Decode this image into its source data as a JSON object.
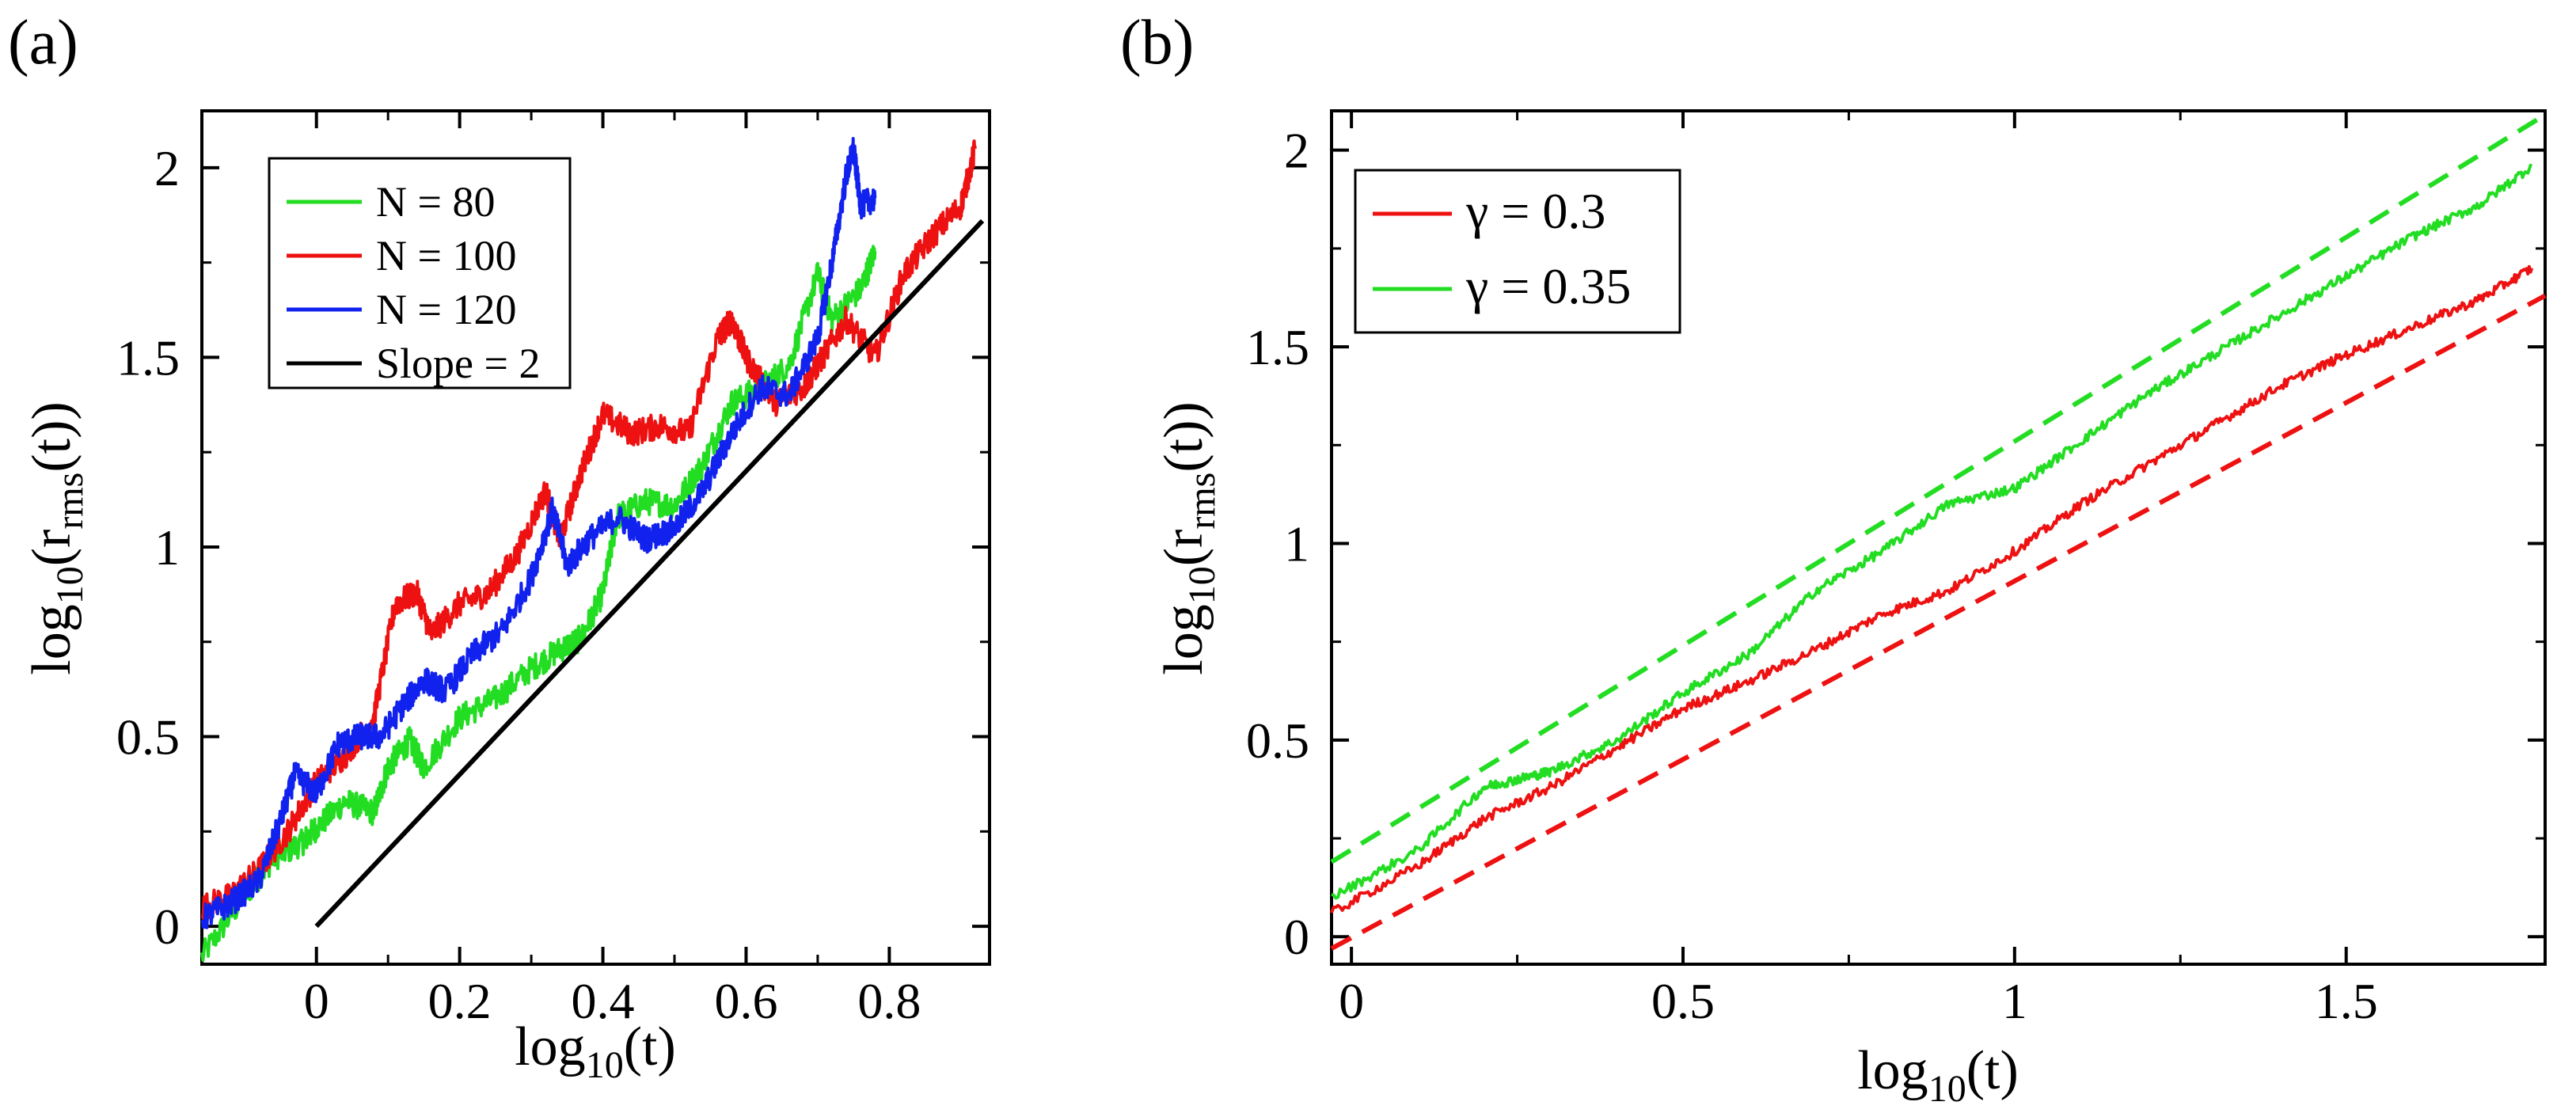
{
  "chart_data": [
    {
      "panel_label": "(a)",
      "type": "line",
      "xlabel": "log10(t)",
      "ylabel": "log10(rms(t))",
      "xlim": [
        -0.16,
        0.94
      ],
      "ylim": [
        -0.1,
        2.15
      ],
      "xticks": [
        0,
        0.2,
        0.4,
        0.6,
        0.8
      ],
      "xtick_labels": [
        "0",
        "0.2",
        "0.4",
        "0.6",
        "0.8"
      ],
      "yticks": [
        0,
        0.5,
        1,
        1.5,
        2
      ],
      "ytick_labels": [
        "0",
        "0.5",
        "1",
        "1.5",
        "2"
      ],
      "legend_position": "top-left",
      "series": [
        {
          "name": "N = 80",
          "color": "#22dd22",
          "x": [
            -0.16,
            -0.1,
            -0.06,
            -0.02,
            0.0,
            0.04,
            0.08,
            0.1,
            0.13,
            0.15,
            0.2,
            0.25,
            0.3,
            0.34,
            0.37,
            0.4,
            0.42,
            0.46,
            0.5,
            0.54,
            0.58,
            0.62,
            0.66,
            0.7,
            0.72,
            0.76,
            0.78
          ],
          "y": [
            -0.08,
            0.08,
            0.18,
            0.22,
            0.26,
            0.33,
            0.3,
            0.42,
            0.49,
            0.42,
            0.55,
            0.6,
            0.68,
            0.73,
            0.76,
            0.88,
            1.08,
            1.12,
            1.11,
            1.22,
            1.38,
            1.42,
            1.48,
            1.72,
            1.6,
            1.68,
            1.78
          ]
        },
        {
          "name": "N = 100",
          "color": "#ee1111",
          "x": [
            -0.16,
            -0.12,
            -0.08,
            -0.04,
            0.0,
            0.04,
            0.08,
            0.11,
            0.14,
            0.16,
            0.2,
            0.24,
            0.28,
            0.32,
            0.34,
            0.37,
            0.4,
            0.44,
            0.48,
            0.52,
            0.56,
            0.58,
            0.6,
            0.64,
            0.68,
            0.7,
            0.74,
            0.78,
            0.82,
            0.86,
            0.9,
            0.92
          ],
          "y": [
            0.05,
            0.08,
            0.15,
            0.25,
            0.38,
            0.45,
            0.55,
            0.85,
            0.88,
            0.77,
            0.85,
            0.88,
            0.98,
            1.15,
            1.02,
            1.2,
            1.35,
            1.3,
            1.32,
            1.3,
            1.55,
            1.6,
            1.5,
            1.38,
            1.42,
            1.48,
            1.6,
            1.5,
            1.72,
            1.82,
            1.9,
            2.05
          ]
        },
        {
          "name": "N = 120",
          "color": "#1122ee",
          "x": [
            -0.16,
            -0.12,
            -0.08,
            -0.05,
            -0.03,
            0.0,
            0.03,
            0.06,
            0.09,
            0.12,
            0.15,
            0.18,
            0.22,
            0.26,
            0.3,
            0.33,
            0.35,
            0.38,
            0.42,
            0.46,
            0.5,
            0.54,
            0.58,
            0.62,
            0.66,
            0.7,
            0.72,
            0.74,
            0.75,
            0.76,
            0.78
          ],
          "y": [
            0.02,
            0.06,
            0.12,
            0.28,
            0.4,
            0.35,
            0.48,
            0.5,
            0.5,
            0.58,
            0.65,
            0.62,
            0.72,
            0.78,
            0.92,
            1.1,
            0.95,
            1.02,
            1.08,
            1.02,
            1.05,
            1.15,
            1.3,
            1.42,
            1.4,
            1.55,
            1.75,
            1.98,
            2.05,
            1.9,
            1.92
          ]
        },
        {
          "name": "Slope = 2",
          "color": "#000000",
          "x": [
            0.0,
            0.93
          ],
          "y": [
            0.0,
            1.86
          ]
        }
      ]
    },
    {
      "panel_label": "(b)",
      "type": "line",
      "xlabel": "log10(t)",
      "ylabel": "log10(rms(t))",
      "xlim": [
        -0.03,
        1.8
      ],
      "ylim": [
        -0.07,
        2.1
      ],
      "xticks": [
        0,
        0.5,
        1,
        1.5
      ],
      "xtick_labels": [
        "0",
        "0.5",
        "1",
        "1.5"
      ],
      "yticks": [
        0,
        0.5,
        1,
        1.5,
        2
      ],
      "ytick_labels": [
        "0",
        "0.5",
        "1",
        "1.5",
        "2"
      ],
      "legend_position": "top-left",
      "series": [
        {
          "name": "γ = 0.3",
          "color": "#ee1111",
          "x": [
            -0.03,
            0.1,
            0.2,
            0.3,
            0.4,
            0.5,
            0.6,
            0.7,
            0.8,
            0.9,
            1.0,
            1.1,
            1.2,
            1.3,
            1.4,
            1.5,
            1.6,
            1.7,
            1.78
          ],
          "y": [
            0.06,
            0.18,
            0.3,
            0.38,
            0.48,
            0.58,
            0.65,
            0.73,
            0.82,
            0.88,
            0.98,
            1.1,
            1.2,
            1.3,
            1.4,
            1.48,
            1.55,
            1.62,
            1.7
          ]
        },
        {
          "name": "γ = 0.35",
          "color": "#22dd22",
          "x": [
            -0.03,
            0.1,
            0.2,
            0.25,
            0.3,
            0.4,
            0.5,
            0.6,
            0.7,
            0.8,
            0.9,
            1.0,
            1.1,
            1.2,
            1.3,
            1.4,
            1.5,
            1.6,
            1.7,
            1.78
          ],
          "y": [
            0.1,
            0.22,
            0.38,
            0.4,
            0.42,
            0.5,
            0.62,
            0.72,
            0.88,
            0.98,
            1.1,
            1.14,
            1.26,
            1.38,
            1.48,
            1.58,
            1.68,
            1.78,
            1.86,
            1.96
          ]
        },
        {
          "name": "γ = 0.3 fit",
          "color": "#ee1111",
          "dashed": true,
          "x": [
            -0.03,
            1.8
          ],
          "y": [
            -0.03,
            1.63
          ]
        },
        {
          "name": "γ = 0.35 fit",
          "color": "#22dd22",
          "dashed": true,
          "x": [
            -0.03,
            1.8
          ],
          "y": [
            0.19,
            2.09
          ]
        }
      ]
    }
  ]
}
